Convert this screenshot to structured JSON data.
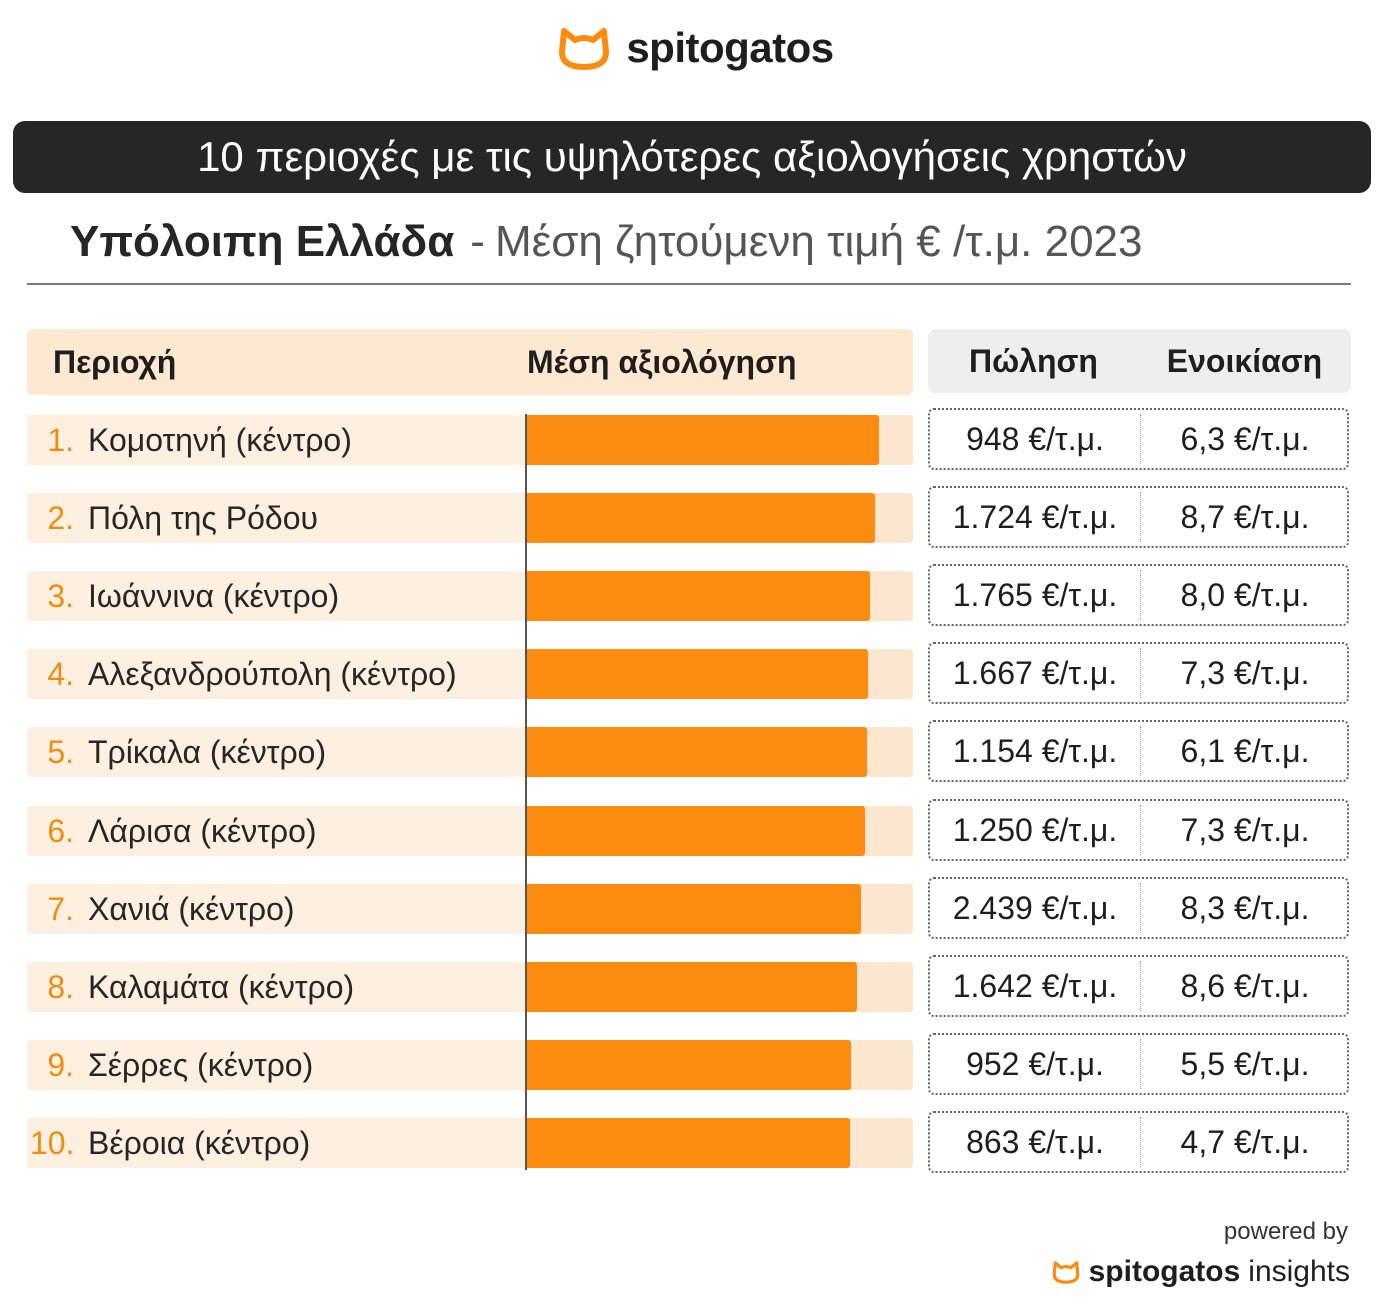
{
  "brand": {
    "name": "spitogatos",
    "icon": "cat-head-icon",
    "accent_color": "#fb8c10"
  },
  "title": "10 περιοχές με τις υψηλότερες αξιολογήσεις χρηστών",
  "subtitle": {
    "region": "Υπόλοιπη Ελλάδα",
    "separator": "-",
    "metric": "Μέση ζητούμενη τιμή € /τ.μ. 2023"
  },
  "table": {
    "col_area": "Περιοχή",
    "col_rating": "Μέση αξιολόγηση",
    "col_sale": "Πώληση",
    "col_rent": "Ενοικίαση"
  },
  "footer": {
    "powered_by": "powered by",
    "brand_bold": "spitogatos",
    "brand_light": "insights"
  },
  "chart_data": {
    "type": "bar",
    "orientation": "horizontal",
    "bar_color": "#fb8c10",
    "track_color": "#fde6cf",
    "max_scale": 1,
    "rows": [
      {
        "rank": "1.",
        "area": "Κομοτηνή (κέντρο)",
        "rating_rel": 0.913,
        "sale": "948 €/τ.μ.",
        "rent": "6,3 €/τ.μ."
      },
      {
        "rank": "2.",
        "area": "Πόλη της Ρόδου",
        "rating_rel": 0.902,
        "sale": "1.724 €/τ.μ.",
        "rent": "8,7 €/τ.μ."
      },
      {
        "rank": "3.",
        "area": "Ιωάννινα (κέντρο)",
        "rating_rel": 0.889,
        "sale": "1.765 €/τ.μ.",
        "rent": "8,0 €/τ.μ."
      },
      {
        "rank": "4.",
        "area": "Αλεξανδρούπολη (κέντρο)",
        "rating_rel": 0.884,
        "sale": "1.667 €/τ.μ.",
        "rent": "7,3 €/τ.μ."
      },
      {
        "rank": "5.",
        "area": "Τρίκαλα (κέντρο)",
        "rating_rel": 0.881,
        "sale": "1.154 €/τ.μ.",
        "rent": "6,1 €/τ.μ."
      },
      {
        "rank": "6.",
        "area": "Λάρισα (κέντρο)",
        "rating_rel": 0.876,
        "sale": "1.250 €/τ.μ.",
        "rent": "7,3 €/τ.μ."
      },
      {
        "rank": "7.",
        "area": "Χανιά (κέντρο)",
        "rating_rel": 0.865,
        "sale": "2.439 €/τ.μ.",
        "rent": "8,3 €/τ.μ."
      },
      {
        "rank": "8.",
        "area": "Καλαμάτα (κέντρο)",
        "rating_rel": 0.855,
        "sale": "1.642 €/τ.μ.",
        "rent": "8,6 €/τ.μ."
      },
      {
        "rank": "9.",
        "area": "Σέρρες (κέντρο)",
        "rating_rel": 0.839,
        "sale": "952 €/τ.μ.",
        "rent": "5,5 €/τ.μ."
      },
      {
        "rank": "10.",
        "area": "Βέροια (κέντρο)",
        "rating_rel": 0.837,
        "sale": "863 €/τ.μ.",
        "rent": "4,7 €/τ.μ."
      }
    ]
  }
}
